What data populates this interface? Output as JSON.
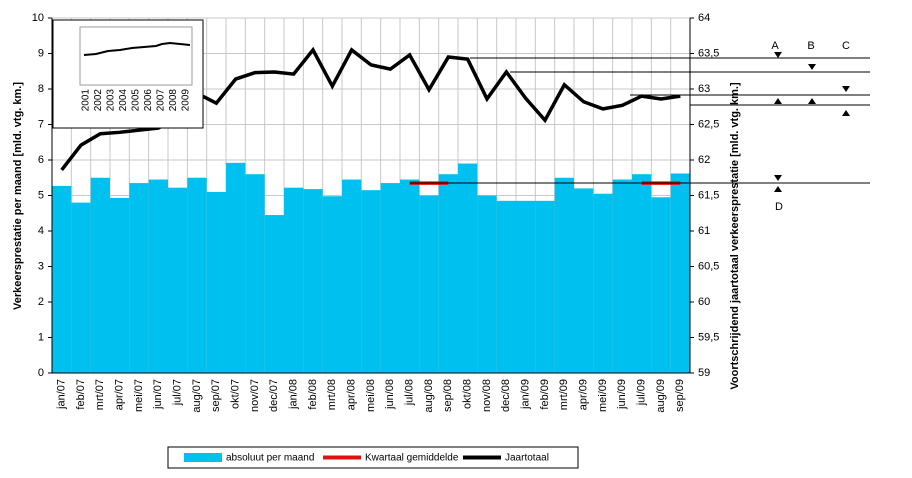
{
  "chart_data": {
    "type": "bar",
    "categories": [
      "jan/07",
      "feb/07",
      "mrt/07",
      "apr/07",
      "mei/07",
      "jun/07",
      "jul/07",
      "aug/07",
      "sep/07",
      "okt/07",
      "nov/07",
      "dec/07",
      "jan/08",
      "feb/08",
      "mrt/08",
      "apr/08",
      "mei/08",
      "jun/08",
      "jul/08",
      "aug/08",
      "sep/08",
      "okt/08",
      "nov/08",
      "dec/08",
      "jan/09",
      "feb/09",
      "mrt/09",
      "apr/09",
      "mei/09",
      "jun/09",
      "jul/09",
      "aug/09",
      "sep/09"
    ],
    "series": [
      {
        "name": "absoluut per maand",
        "type": "bar",
        "color": "#00c0f0",
        "values": [
          5.27,
          4.8,
          5.5,
          4.93,
          5.35,
          5.45,
          5.22,
          5.5,
          5.1,
          5.92,
          5.6,
          4.45,
          5.22,
          5.18,
          4.98,
          5.45,
          5.15,
          5.35,
          5.45,
          5.0,
          5.6,
          5.9,
          5.0,
          4.85,
          4.85,
          4.85,
          5.5,
          5.2,
          5.05,
          5.45,
          5.6,
          4.95,
          5.62
        ]
      },
      {
        "name": "Kwartaal gemiddelde",
        "type": "line",
        "color": "#e01010",
        "values": [
          null,
          null,
          null,
          null,
          null,
          null,
          null,
          null,
          null,
          null,
          null,
          null,
          null,
          null,
          null,
          null,
          null,
          null,
          5.35,
          5.35,
          5.35,
          null,
          null,
          null,
          null,
          null,
          null,
          null,
          null,
          null,
          5.35,
          5.35,
          5.35
        ]
      },
      {
        "name": "Jaartotaal",
        "type": "line",
        "color": "#000000",
        "axis": "y2",
        "values": [
          61.86,
          62.21,
          62.37,
          62.39,
          62.42,
          62.45,
          62.6,
          62.94,
          62.8,
          63.14,
          63.23,
          63.24,
          63.21,
          63.55,
          63.04,
          63.55,
          63.34,
          63.28,
          63.48,
          62.99,
          63.45,
          63.42,
          62.86,
          63.24,
          62.87,
          62.56,
          63.06,
          62.82,
          62.72,
          62.77,
          62.9,
          62.86,
          62.9
        ]
      }
    ],
    "ylabel": "Verkeersprestatie per maand [mld. vtg. km.]",
    "y2label": "Voortschrijdend jaartotaal verkeersprestatie [mld. vtg. km.]",
    "ylim": [
      0,
      10
    ],
    "yticks": [
      0,
      1,
      2,
      3,
      4,
      5,
      6,
      7,
      8,
      9,
      10
    ],
    "y2lim": [
      59,
      64
    ],
    "y2ticks": [
      59,
      {
        "value": 59.5,
        "label": "59,5"
      },
      60,
      {
        "value": 60.5,
        "label": "60,5"
      },
      61,
      {
        "value": 61.5,
        "label": "61,5"
      },
      62,
      {
        "value": 62.5,
        "label": "62,5"
      },
      63,
      {
        "value": 63.5,
        "label": "63,5"
      },
      64
    ],
    "grid": true,
    "legend": "bottom",
    "inset": {
      "categories": [
        "2001",
        "2002",
        "2003",
        "2004",
        "2005",
        "2006",
        "2007",
        "2008",
        "2009"
      ]
    },
    "annotations": [
      "A",
      "B",
      "C",
      "D"
    ]
  }
}
